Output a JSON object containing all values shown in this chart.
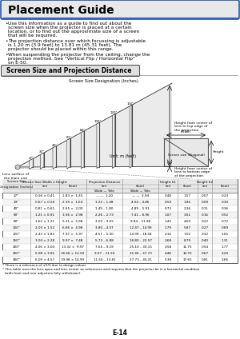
{
  "title": "Placement Guide",
  "section_title": "Screen Size and Projection Distance",
  "bullets": [
    "Use this information as a guide to find out about the screen size when the projector is placed at a certain location, or to find out the approximate size of a screen that will be required.",
    "The projection distance over which focussing is adjustable is 1.20 m (3.9 feet) to 13.81 m (45.31 feet). The projector should be placed within this range.",
    "When suspending the projector from the ceiling, change the projection method. See \"Vertical Flip / Horizontal Flip\" on E-50."
  ],
  "diagram_label_screen_size": "Screen Size Designation (Inches)",
  "diagram_label_height_h1": "Height from center of\nlens to top edge of\nthe projection",
  "diagram_label_height_h2": "Height from center of\nlens to bottom edge\nof the projection",
  "diagram_label_unit": "Unit: m (feet)",
  "diagram_label_lens": "Lens surface of\nthe main unit",
  "diagram_label_width": "Width",
  "diagram_label_height": "Height",
  "diagram_label_screen_diag": "Screen size (Diagonal)",
  "table_data": [
    [
      "27\"",
      "0.56 × 0.41",
      "1.83 ×  1.35",
      "— —  1.20",
      "— —  3.94",
      "0.48",
      "1.57",
      "0.07",
      "0.23"
    ],
    [
      "33\"",
      "0.67 × 0.50",
      "2.19 ×  1.64",
      "1.23 – 1.48",
      "4.04 – 4.86",
      "0.59",
      "1.94",
      "0.09",
      "0.30"
    ],
    [
      "40\"",
      "0.81 × 0.61",
      "2.65 ×  2.00",
      "1.49 – 1.80",
      "4.89 – 5.91",
      "0.72",
      "2.36",
      "0.11",
      "0.36"
    ],
    [
      "60\"",
      "1.21 × 0.91",
      "3.96 ×  2.98",
      "2.26 – 2.73",
      "7.41 – 8.96",
      "1.07",
      "3.51",
      "0.16",
      "0.52"
    ],
    [
      "80\"",
      "1.62 × 1.21",
      "5.31 ×  3.98",
      "3.00 – 3.65",
      "9.84 – 11.98",
      "1.43",
      "4.69",
      "0.22",
      "0.72"
    ],
    [
      "100\"",
      "2.03 × 1.52",
      "6.66 ×  4.98",
      "3.80 – 4.57",
      "12.47 – 14.99",
      "1.79",
      "5.87",
      "0.27",
      "0.89"
    ],
    [
      "120\"",
      "2.43 × 1.82",
      "7.97 ×  5.97",
      "4.57 – 5.50",
      "14.99 – 18.04",
      "2.14",
      "7.02",
      "0.32",
      "1.05"
    ],
    [
      "150\"",
      "3.04 × 2.28",
      "9.97 ×  7.48",
      "5.73 – 6.88",
      "18.80 – 22.57",
      "2.68",
      "8.79",
      "0.40",
      "1.31"
    ],
    [
      "200\"",
      "4.06 × 3.04",
      "13.32 ×  9.97",
      "7.65 – 9.19",
      "25.10 – 30.15",
      "3.58",
      "11.75",
      "0.54",
      "1.77"
    ],
    [
      "250\"",
      "5.08 × 3.81",
      "16.66 × 12.50",
      "9.57 – 11.50",
      "31.40 – 37.73",
      "4.48",
      "14.70",
      "0.67",
      "2.20"
    ],
    [
      "300\"",
      "6.09 × 4.57",
      "19.98 × 14.99",
      "11.50 – 13.81",
      "37.73 – 45.31",
      "5.38",
      "17.65",
      "0.81",
      "2.66"
    ]
  ],
  "footnotes": [
    "* There is a tolerance of ±5% due to design values.",
    "* This table uses the lens apex and lens center as references and requires that the projector be in a horizontal condition\n  (with front and rear adjusters fully withdrawn)."
  ],
  "page_label": "E-14"
}
